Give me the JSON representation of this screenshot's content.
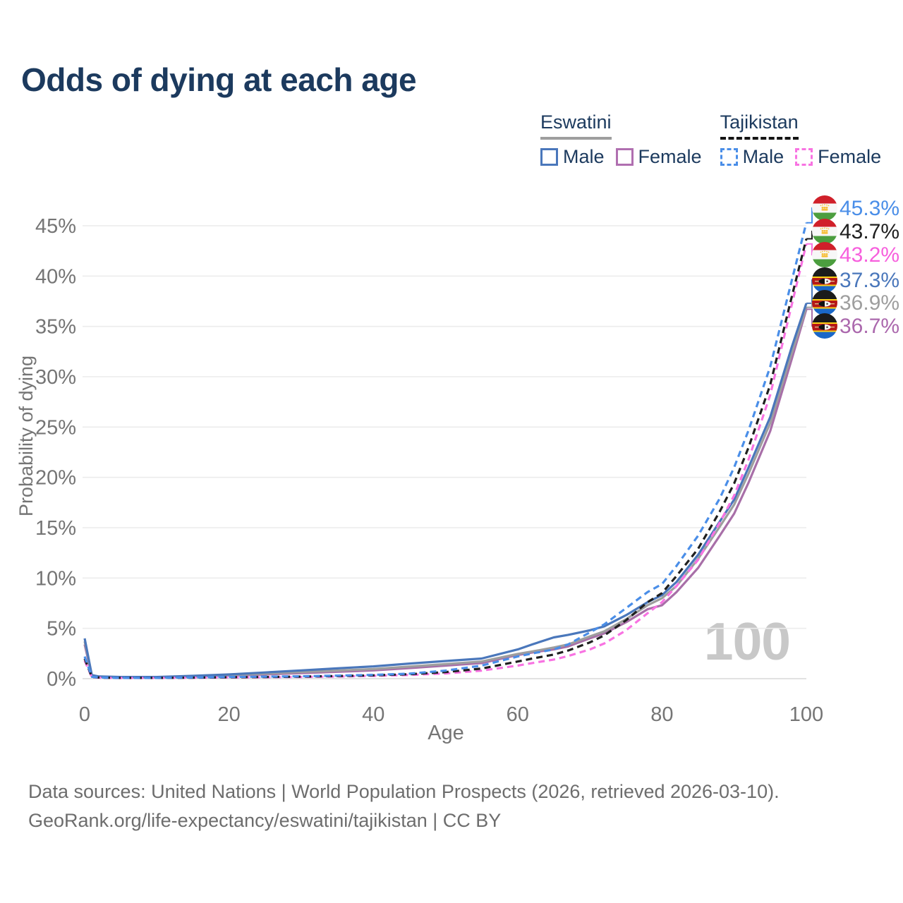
{
  "title": "Odds of dying at each age",
  "age_indicator": "100",
  "legend": {
    "groups": [
      {
        "name": "Eswatini",
        "line_style": "solid",
        "underline_color": "#9e9e9e",
        "items": [
          {
            "label": "Male",
            "color": "#4a77bb"
          },
          {
            "label": "Female",
            "color": "#b06fb0"
          }
        ]
      },
      {
        "name": "Tajikistan",
        "line_style": "dashed",
        "underline_color": "#151515",
        "items": [
          {
            "label": "Male",
            "color": "#4a8ee8"
          },
          {
            "label": "Female",
            "color": "#f873e2"
          }
        ]
      }
    ]
  },
  "chart_data": {
    "type": "line",
    "title": "Odds of dying at each age",
    "xlabel": "Age",
    "ylabel": "Probability of dying",
    "xlim": [
      0,
      100
    ],
    "ylim_percent": [
      0,
      46
    ],
    "grid": true,
    "x_ticks": [
      0,
      20,
      40,
      60,
      80,
      100
    ],
    "y_tick_labels": [
      "0%",
      "5%",
      "10%",
      "15%",
      "20%",
      "25%",
      "30%",
      "35%",
      "40%",
      "45%"
    ],
    "ages": [
      0,
      1,
      2,
      3,
      5,
      10,
      15,
      20,
      25,
      30,
      35,
      40,
      45,
      50,
      55,
      60,
      62,
      65,
      67,
      70,
      72,
      75,
      78,
      80,
      82,
      85,
      88,
      90,
      92,
      95,
      98,
      100
    ],
    "series": [
      {
        "id": "tajikistan-male",
        "name": "Tajikistan — Male",
        "country": "Tajikistan",
        "sex": "Male",
        "flag": "tajikistan",
        "color": "#4a8ee8",
        "label_color": "#4a8ee8",
        "dash": true,
        "end_label": "45.3%",
        "values_percent": [
          2.2,
          0.18,
          0.12,
          0.1,
          0.08,
          0.08,
          0.12,
          0.17,
          0.2,
          0.24,
          0.3,
          0.38,
          0.5,
          0.8,
          1.3,
          2.2,
          2.5,
          2.9,
          3.4,
          4.6,
          5.4,
          7.0,
          8.6,
          9.4,
          11.2,
          14.2,
          17.9,
          21.0,
          24.7,
          31.0,
          39.6,
          45.3
        ]
      },
      {
        "id": "tajikistan-both",
        "name": "Tajikistan — Both sexes",
        "country": "Tajikistan",
        "sex": "Both",
        "flag": "tajikistan",
        "color": "#1f1f1f",
        "label_color": "#1f1f1f",
        "dash": true,
        "end_label": "43.7%",
        "values_percent": [
          2.0,
          0.16,
          0.11,
          0.09,
          0.075,
          0.075,
          0.1,
          0.14,
          0.17,
          0.2,
          0.26,
          0.33,
          0.44,
          0.65,
          1.0,
          1.7,
          2.0,
          2.4,
          2.8,
          3.6,
          4.3,
          5.8,
          7.6,
          8.5,
          10.2,
          12.9,
          16.6,
          19.4,
          23.0,
          29.2,
          38.0,
          43.7
        ]
      },
      {
        "id": "tajikistan-female",
        "name": "Tajikistan — Female",
        "country": "Tajikistan",
        "sex": "Female",
        "flag": "tajikistan",
        "color": "#f873e2",
        "label_color": "#f75fdd",
        "dash": true,
        "end_label": "43.2%",
        "values_percent": [
          1.8,
          0.14,
          0.1,
          0.08,
          0.07,
          0.07,
          0.09,
          0.12,
          0.14,
          0.17,
          0.22,
          0.28,
          0.37,
          0.52,
          0.8,
          1.3,
          1.55,
          1.9,
          2.25,
          2.9,
          3.5,
          4.8,
          6.5,
          7.6,
          9.2,
          11.8,
          15.5,
          18.2,
          21.8,
          28.2,
          37.2,
          43.2
        ]
      },
      {
        "id": "eswatini-male",
        "name": "Eswatini — Male",
        "country": "Eswatini",
        "sex": "Male",
        "flag": "eswatini",
        "color": "#4a77bb",
        "label_color": "#4a77bb",
        "dash": false,
        "end_label": "37.3%",
        "values_percent": [
          4.0,
          0.35,
          0.22,
          0.2,
          0.17,
          0.17,
          0.28,
          0.42,
          0.62,
          0.82,
          1.02,
          1.22,
          1.5,
          1.75,
          2.0,
          2.9,
          3.4,
          4.1,
          4.35,
          4.8,
          5.2,
          6.3,
          7.6,
          8.3,
          9.6,
          12.3,
          15.6,
          17.8,
          21.0,
          26.0,
          33.0,
          37.3
        ]
      },
      {
        "id": "eswatini-both",
        "name": "Eswatini — Both sexes",
        "country": "Eswatini",
        "sex": "Both",
        "flag": "eswatini",
        "color": "#9e9e9e",
        "label_color": "#9e9e9e",
        "dash": false,
        "end_label": "36.9%",
        "values_percent": [
          3.7,
          0.32,
          0.2,
          0.18,
          0.15,
          0.15,
          0.24,
          0.36,
          0.5,
          0.65,
          0.8,
          0.95,
          1.2,
          1.45,
          1.7,
          2.45,
          2.7,
          3.1,
          3.4,
          4.2,
          4.7,
          5.9,
          7.3,
          8.0,
          9.2,
          11.9,
          15.1,
          17.3,
          20.4,
          25.4,
          32.4,
          36.9
        ]
      },
      {
        "id": "eswatini-female",
        "name": "Eswatini — Female",
        "country": "Eswatini",
        "sex": "Female",
        "flag": "eswatini",
        "color": "#a86fa8",
        "label_color": "#ab68ad",
        "dash": false,
        "end_label": "36.7%",
        "values_percent": [
          3.4,
          0.28,
          0.18,
          0.16,
          0.13,
          0.13,
          0.2,
          0.3,
          0.42,
          0.55,
          0.68,
          0.82,
          1.05,
          1.3,
          1.55,
          2.35,
          2.6,
          2.9,
          3.2,
          4.0,
          4.5,
          5.6,
          6.9,
          7.3,
          8.6,
          11.0,
          14.2,
          16.4,
          19.5,
          24.6,
          31.8,
          36.7
        ]
      }
    ]
  },
  "source": {
    "line1": "Data sources: United Nations | World Population Prospects (2026, retrieved 2026-03-10).",
    "line2": "GeoRank.org/life-expectancy/eswatini/tajikistan | CC BY"
  }
}
